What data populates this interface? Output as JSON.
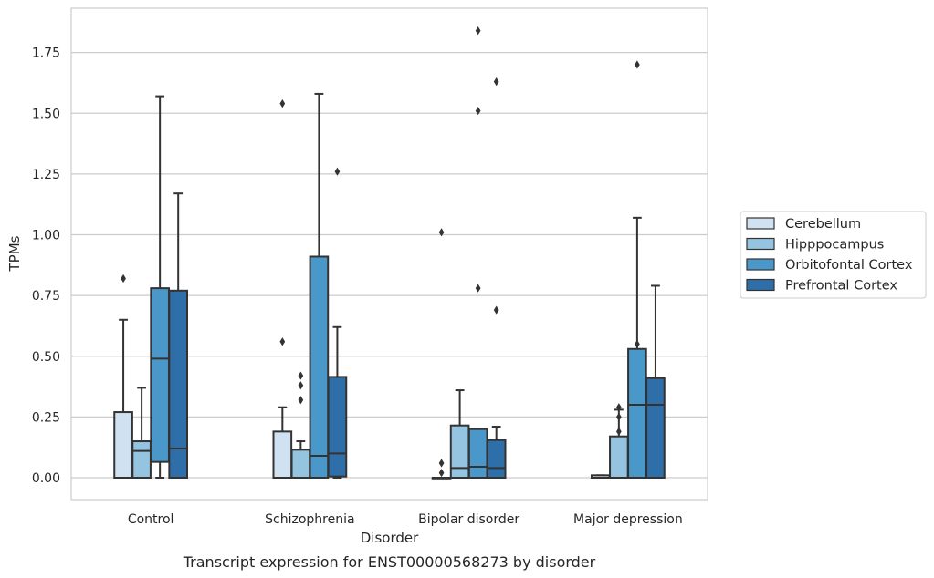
{
  "chart_data": {
    "type": "box",
    "caption": "Transcript expression for ENST00000568273 by disorder",
    "xlabel": "Disorder",
    "ylabel": "TPMs",
    "ylim": [
      -0.09,
      1.94
    ],
    "yticks": [
      0.0,
      0.25,
      0.5,
      0.75,
      1.0,
      1.25,
      1.5,
      1.75
    ],
    "ytick_labels": [
      "0.00",
      "0.25",
      "0.50",
      "0.75",
      "1.00",
      "1.25",
      "1.50",
      "1.75"
    ],
    "grid": "horizontal",
    "legend_position": "right",
    "categories": [
      "Control",
      "Schizophrenia",
      "Bipolar disorder",
      "Major depression"
    ],
    "series": [
      {
        "name": "Cerebellum",
        "color": "#d0e1f2",
        "boxes": [
          {
            "whisker_low": 0.0,
            "q1": 0.0,
            "median": 0.0,
            "q3": 0.27,
            "whisker_high": 0.65,
            "outliers": [
              0.82
            ]
          },
          {
            "whisker_low": 0.0,
            "q1": 0.0,
            "median": 0.0,
            "q3": 0.19,
            "whisker_high": 0.29,
            "outliers": [
              1.54,
              0.56
            ]
          },
          {
            "whisker_low": 0.0,
            "q1": 0.0,
            "median": 0.0,
            "q3": 0.0,
            "whisker_high": 0.0,
            "outliers": [
              1.01,
              0.06,
              0.02
            ]
          },
          {
            "whisker_low": 0.0,
            "q1": 0.0,
            "median": 0.0,
            "q3": 0.01,
            "whisker_high": 0.01,
            "outliers": []
          }
        ]
      },
      {
        "name": "Hipppocampus",
        "color": "#94c4df",
        "boxes": [
          {
            "whisker_low": 0.0,
            "q1": 0.0,
            "median": 0.11,
            "q3": 0.15,
            "whisker_high": 0.37,
            "outliers": []
          },
          {
            "whisker_low": 0.0,
            "q1": 0.0,
            "median": 0.0,
            "q3": 0.115,
            "whisker_high": 0.15,
            "outliers": [
              0.42,
              0.38,
              0.32
            ]
          },
          {
            "whisker_low": 0.0,
            "q1": 0.0,
            "median": 0.04,
            "q3": 0.215,
            "whisker_high": 0.36,
            "outliers": []
          },
          {
            "whisker_low": 0.0,
            "q1": 0.0,
            "median": 0.0,
            "q3": 0.17,
            "whisker_high": 0.28,
            "outliers": [
              0.29,
              0.25,
              0.19
            ]
          }
        ]
      },
      {
        "name": "Orbitofontal Cortex",
        "color": "#4a98c9",
        "boxes": [
          {
            "whisker_low": 0.0,
            "q1": 0.065,
            "median": 0.49,
            "q3": 0.78,
            "whisker_high": 1.57,
            "outliers": []
          },
          {
            "whisker_low": 0.0,
            "q1": 0.0,
            "median": 0.09,
            "q3": 0.91,
            "whisker_high": 1.58,
            "outliers": []
          },
          {
            "whisker_low": 0.0,
            "q1": 0.0,
            "median": 0.045,
            "q3": 0.2,
            "whisker_high": 0.2,
            "outliers": [
              1.84,
              1.51,
              0.78
            ]
          },
          {
            "whisker_low": 0.0,
            "q1": 0.0,
            "median": 0.3,
            "q3": 0.53,
            "whisker_high": 1.07,
            "outliers": [
              1.7,
              0.55
            ]
          }
        ]
      },
      {
        "name": "Prefrontal Cortex",
        "color": "#2e6faa",
        "boxes": [
          {
            "whisker_low": 0.0,
            "q1": 0.0,
            "median": 0.12,
            "q3": 0.77,
            "whisker_high": 1.17,
            "outliers": []
          },
          {
            "whisker_low": 0.0,
            "q1": 0.005,
            "median": 0.1,
            "q3": 0.415,
            "whisker_high": 0.62,
            "outliers": [
              1.26
            ]
          },
          {
            "whisker_low": 0.0,
            "q1": 0.0,
            "median": 0.04,
            "q3": 0.155,
            "whisker_high": 0.21,
            "outliers": [
              1.63,
              0.69
            ]
          },
          {
            "whisker_low": 0.0,
            "q1": 0.0,
            "median": 0.3,
            "q3": 0.41,
            "whisker_high": 0.79,
            "outliers": []
          }
        ]
      }
    ]
  }
}
